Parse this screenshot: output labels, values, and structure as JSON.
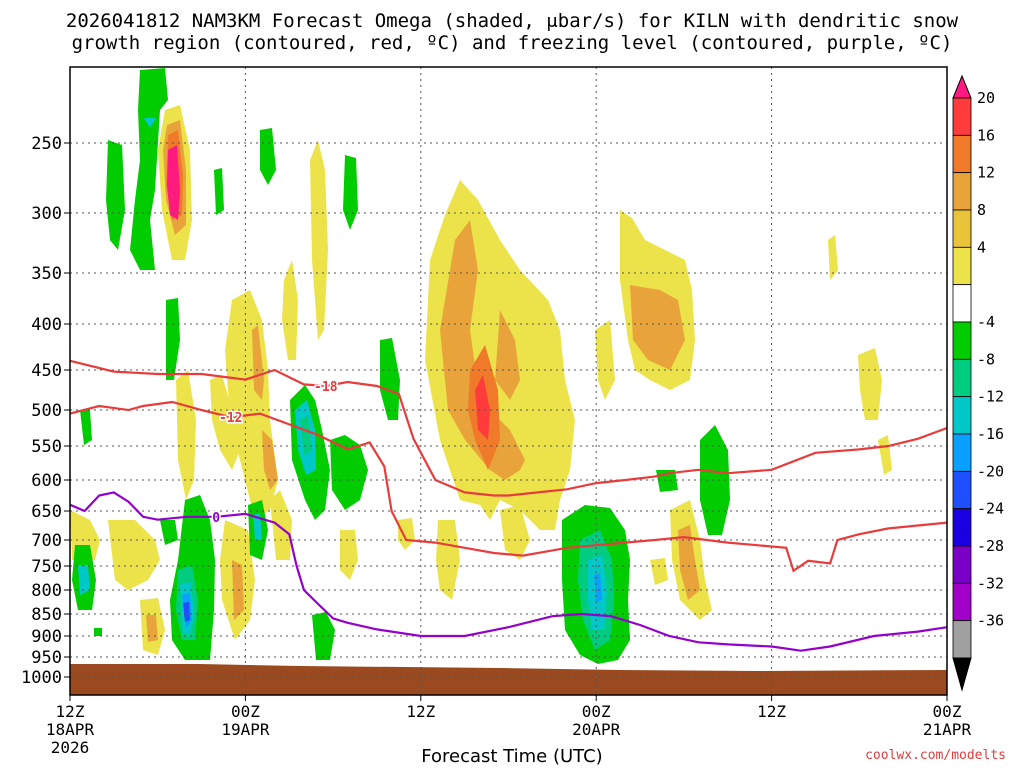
{
  "title_line1": "2026041812 NAM3KM Forecast Omega (shaded, μbar/s) for KILN with dendritic snow",
  "title_line2": "growth region (contoured, red, ºC) and freezing level (contoured, purple, ºC)",
  "credit": "coolwx.com/modelts",
  "chart_data": {
    "type": "heatmap",
    "xlabel": "Forecast Time (UTC)",
    "ylabel": "",
    "x_ticks": [
      {
        "t": 0,
        "lines": [
          "12Z",
          "18APR",
          "2026"
        ]
      },
      {
        "t": 12,
        "lines": [
          "00Z",
          "19APR"
        ]
      },
      {
        "t": 24,
        "lines": [
          "12Z"
        ]
      },
      {
        "t": 36,
        "lines": [
          "00Z",
          "20APR"
        ]
      },
      {
        "t": 48,
        "lines": [
          "12Z"
        ]
      },
      {
        "t": 60,
        "lines": [
          "00Z",
          "21APR"
        ]
      }
    ],
    "y_ticks": [
      250,
      300,
      350,
      400,
      450,
      500,
      550,
      600,
      650,
      700,
      750,
      800,
      850,
      900,
      950,
      1000
    ],
    "ylim": [
      1000,
      200
    ],
    "xlim": [
      0,
      60
    ],
    "colorbar": {
      "labels": [
        "20",
        "16",
        "12",
        "8",
        "4",
        "-4",
        "-8",
        "-12",
        "-16",
        "-20",
        "-24",
        "-28",
        "-32",
        "-36"
      ],
      "colors": [
        "#ff1a80",
        "#ff3b3b",
        "#f07a2a",
        "#e8a43a",
        "#e8c43a",
        "#ece34a",
        "#ffffff",
        "#00cc00",
        "#00cc80",
        "#00c8c8",
        "#0aa0ff",
        "#1e50ff",
        "#1a00e0",
        "#7a00c8",
        "#a000c8",
        "#a0a0a0",
        "#000000"
      ]
    },
    "contours": [
      {
        "name": "-18",
        "color": "#e83c3c",
        "label_x": 17.5,
        "points": [
          [
            0,
            440
          ],
          [
            3,
            452
          ],
          [
            6,
            455
          ],
          [
            9,
            455
          ],
          [
            12,
            462
          ],
          [
            14,
            450
          ],
          [
            16,
            468
          ],
          [
            17.5,
            470
          ],
          [
            19,
            465
          ],
          [
            21,
            470
          ],
          [
            22.5,
            480
          ],
          [
            23.5,
            540
          ],
          [
            25,
            600
          ],
          [
            27,
            620
          ],
          [
            29,
            625
          ],
          [
            30,
            625
          ],
          [
            32,
            620
          ],
          [
            34,
            615
          ],
          [
            36,
            605
          ],
          [
            38,
            600
          ],
          [
            40,
            595
          ],
          [
            41,
            590
          ],
          [
            43,
            585
          ],
          [
            45,
            590
          ],
          [
            48,
            585
          ],
          [
            51,
            560
          ],
          [
            54,
            555
          ],
          [
            56,
            550
          ],
          [
            58,
            540
          ],
          [
            60,
            525
          ]
        ]
      },
      {
        "name": "-12",
        "color": "#e83c3c",
        "label_x": 11,
        "points": [
          [
            0,
            505
          ],
          [
            2,
            495
          ],
          [
            4,
            500
          ],
          [
            5,
            495
          ],
          [
            7,
            490
          ],
          [
            9,
            500
          ],
          [
            11,
            510
          ],
          [
            13,
            505
          ],
          [
            15,
            520
          ],
          [
            17,
            535
          ],
          [
            19,
            555
          ],
          [
            20.5,
            545
          ],
          [
            21.5,
            580
          ],
          [
            22,
            650
          ],
          [
            23,
            700
          ],
          [
            25,
            705
          ],
          [
            27,
            715
          ],
          [
            29,
            725
          ],
          [
            31,
            730
          ],
          [
            33,
            720
          ],
          [
            34,
            715
          ],
          [
            36,
            710
          ],
          [
            38,
            705
          ],
          [
            40,
            700
          ],
          [
            42,
            695
          ],
          [
            45,
            705
          ],
          [
            47,
            710
          ],
          [
            49,
            715
          ],
          [
            49.5,
            760
          ],
          [
            50.5,
            740
          ],
          [
            52,
            745
          ],
          [
            52.5,
            700
          ],
          [
            54,
            690
          ],
          [
            56,
            680
          ],
          [
            58,
            675
          ],
          [
            60,
            670
          ]
        ]
      },
      {
        "name": "0",
        "color": "#9400cc",
        "label_x": 10,
        "points": [
          [
            0,
            640
          ],
          [
            1,
            650
          ],
          [
            2,
            625
          ],
          [
            3,
            620
          ],
          [
            4,
            635
          ],
          [
            5,
            660
          ],
          [
            6,
            665
          ],
          [
            8,
            660
          ],
          [
            10,
            660
          ],
          [
            12,
            655
          ],
          [
            14,
            670
          ],
          [
            15,
            690
          ],
          [
            15.5,
            750
          ],
          [
            16,
            800
          ],
          [
            17,
            830
          ],
          [
            18,
            860
          ],
          [
            19,
            870
          ],
          [
            21,
            885
          ],
          [
            24,
            900
          ],
          [
            27,
            900
          ],
          [
            30,
            880
          ],
          [
            33,
            855
          ],
          [
            35,
            850
          ],
          [
            37,
            855
          ],
          [
            39,
            875
          ],
          [
            41,
            900
          ],
          [
            43,
            915
          ],
          [
            45,
            920
          ],
          [
            48,
            925
          ],
          [
            50,
            935
          ],
          [
            52,
            925
          ],
          [
            55,
            900
          ],
          [
            58,
            890
          ],
          [
            60,
            880
          ]
        ]
      }
    ]
  }
}
